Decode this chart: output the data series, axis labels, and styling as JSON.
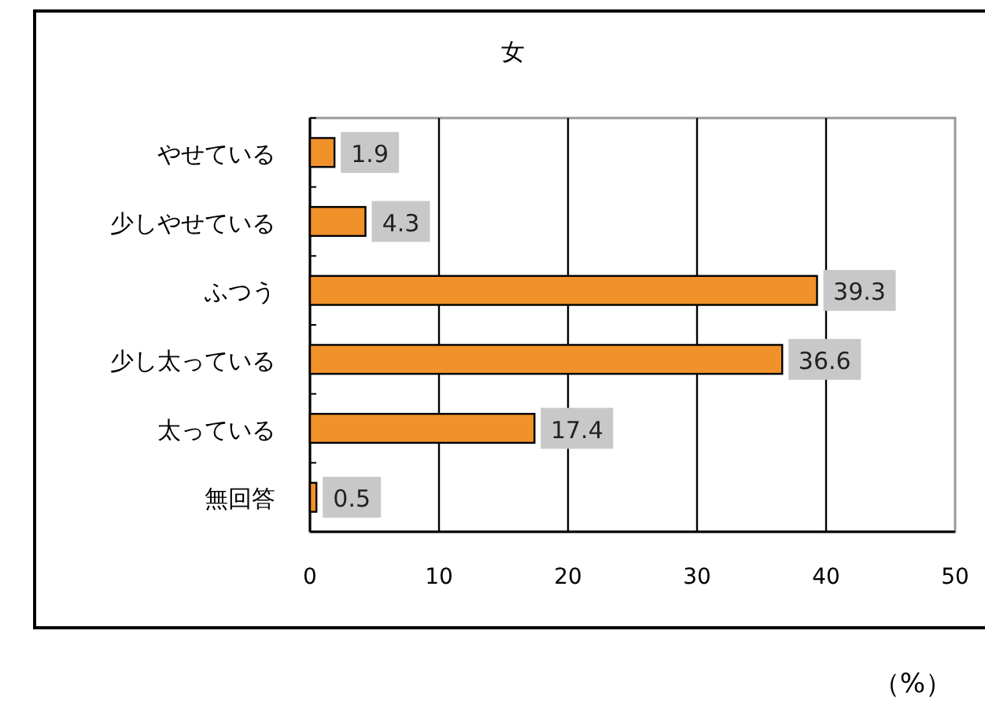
{
  "chart_data": {
    "type": "bar",
    "orientation": "horizontal",
    "title": "女",
    "xlabel": "（%）",
    "categories": [
      "やせている",
      "少しやせている",
      "ふつう",
      "少し太っている",
      "太っている",
      "無回答"
    ],
    "values": [
      1.9,
      4.3,
      39.3,
      36.6,
      17.4,
      0.5
    ],
    "color": "#f0912a",
    "xlim": [
      0,
      50
    ],
    "xticks": [
      0,
      10,
      20,
      30,
      40,
      50
    ],
    "grid": "x",
    "data_labels": true
  }
}
